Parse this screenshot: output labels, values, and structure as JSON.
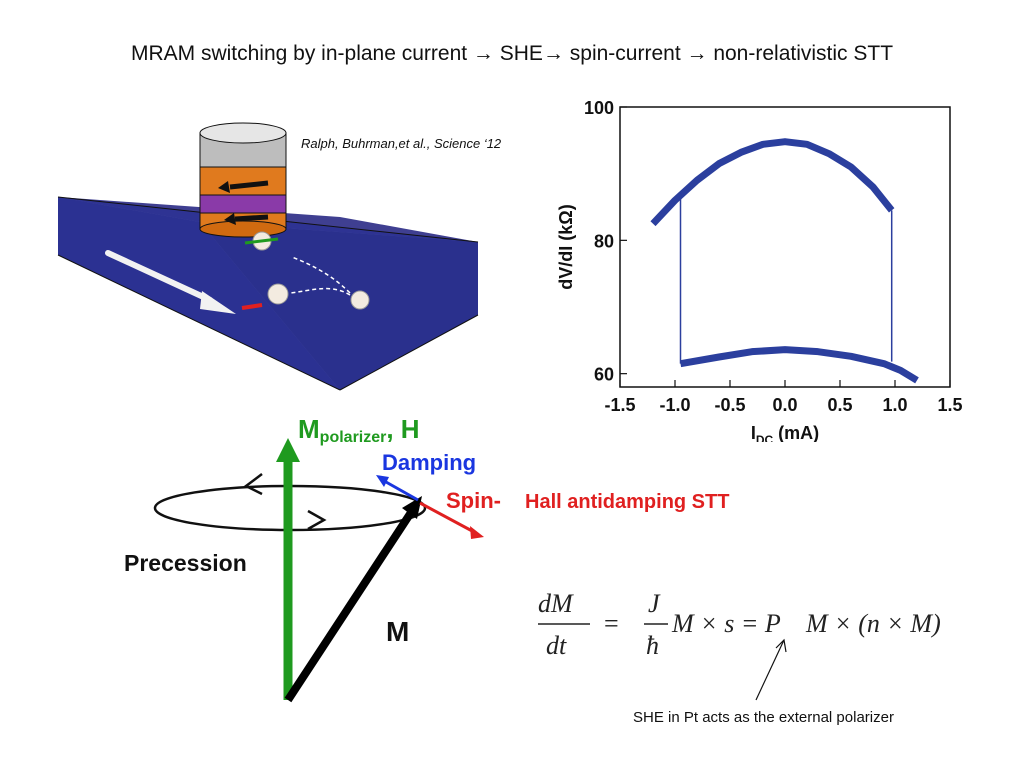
{
  "slide": {
    "title": "MRAM switching by in-plane current → SHE→ spin-current → non-relativistic STT",
    "credit": "Ralph, Buhrman,et al., Science ‘12"
  },
  "vector_diagram": {
    "m_polarizer_label": "M",
    "m_polarizer_subscript": "polarizer",
    "m_polarizer_suffix": ", H",
    "damping_label": "Damping",
    "spin_label": "Spin-",
    "she_stt_label": "Hall antidamping STT",
    "precession_label": "Precession",
    "m_label": "M",
    "colors": {
      "polarizer": "#1f9a1f",
      "damping": "#1a36e0",
      "spin": "#e02020",
      "m": "#000000"
    }
  },
  "equation": {
    "lhs_num": "dM",
    "lhs_den": "dt",
    "eq1": "=",
    "rhs1_num": "J",
    "rhs1_den": "ħ",
    "rhs1_tail": "M × s = P",
    "rhs2_tail": "M × (n × M)"
  },
  "note": "SHE in Pt acts as the external polarizer",
  "device_icons": [
    "stack-icon",
    "spin-ball-icon",
    "current-arrow-icon"
  ],
  "chart_data": {
    "type": "line",
    "xlabel": "I",
    "xlabel_sub": "DC",
    "xlabel_unit": " (mA)",
    "ylabel": "dV/dI (kΩ)",
    "xlim": [
      -1.5,
      1.5
    ],
    "ylim": [
      58,
      100
    ],
    "xticks": [
      -1.5,
      -1.0,
      -0.5,
      0.0,
      0.5,
      1.0,
      1.5
    ],
    "xtick_labels": [
      "-1.5",
      "-1.0",
      "-0.5",
      "0.0",
      "0.5",
      "1.0",
      "1.5"
    ],
    "yticks": [
      60,
      80,
      100
    ],
    "ytick_labels": [
      "60",
      "80",
      "100"
    ],
    "color": "#2b3f9e",
    "series": [
      {
        "x": [
          -1.2,
          -1.0,
          -0.8,
          -0.6,
          -0.4,
          -0.2,
          0.0,
          0.2,
          0.4,
          0.6,
          0.8,
          0.97
        ],
        "values": [
          82.5,
          86.0,
          89.0,
          91.5,
          93.2,
          94.4,
          94.8,
          94.4,
          93.0,
          91.0,
          88.0,
          84.5
        ]
      },
      {
        "x": [
          -0.95,
          -0.6,
          -0.3,
          0.0,
          0.3,
          0.6,
          0.9,
          1.05,
          1.2
        ],
        "values": [
          61.5,
          62.5,
          63.3,
          63.6,
          63.3,
          62.6,
          61.5,
          60.5,
          59.0
        ]
      },
      {
        "x": [
          -0.95,
          -0.95
        ],
        "values": [
          87.0,
          61.5
        ]
      },
      {
        "x": [
          0.97,
          0.97
        ],
        "values": [
          84.5,
          61.8
        ]
      }
    ]
  }
}
